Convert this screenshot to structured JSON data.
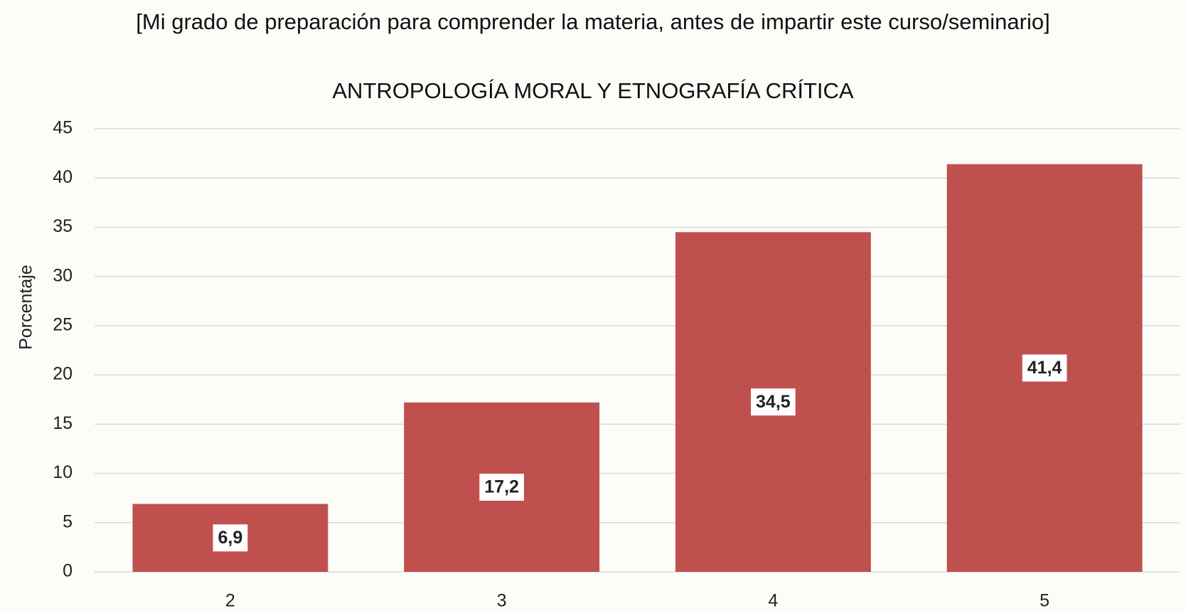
{
  "chart_data": {
    "type": "bar",
    "title": "[Mi grado de preparación para comprender la materia, antes de impartir este curso/seminario]",
    "subtitle": "ANTROPOLOGÍA MORAL Y ETNOGRAFÍA CRÍTICA",
    "ylabel": "Porcentaje",
    "categories": [
      "2",
      "3",
      "4",
      "5"
    ],
    "values": [
      6.9,
      17.2,
      34.5,
      41.4
    ],
    "value_labels": [
      "6,9",
      "17,2",
      "34,5",
      "41,4"
    ],
    "color": "#c0504d",
    "ylim": [
      0,
      45
    ],
    "yticks": [
      0,
      5,
      10,
      15,
      20,
      25,
      30,
      35,
      40,
      45
    ],
    "grid": true
  }
}
